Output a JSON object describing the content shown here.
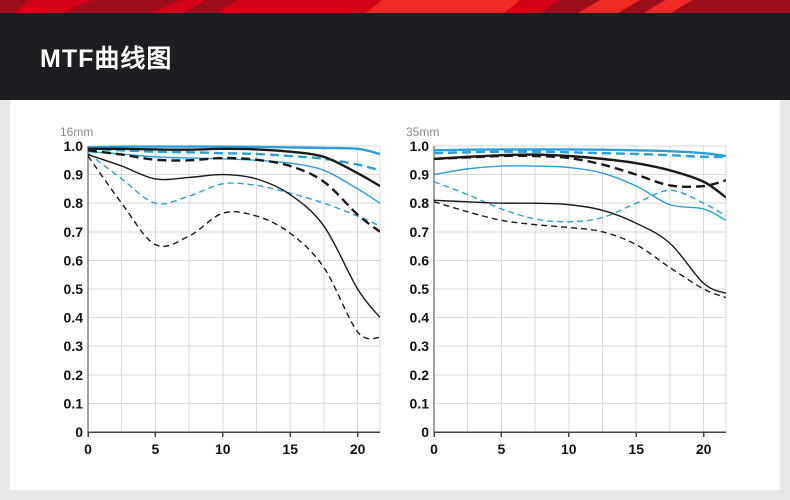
{
  "page": {
    "title": "MTF曲线图"
  },
  "theme": {
    "header_bg": "#1d1d22",
    "banner_red": "#d40017",
    "banner_bright": "#ef2a23",
    "banner_dark": "#9c0f1a",
    "panel_bg": "#ffffff",
    "outer_bg": "#e8e8e8",
    "grid_color": "#d8d8d8",
    "axis_color": "#444444",
    "label_color": "#111111",
    "chart_title_color": "#8a8a8a",
    "black_line": "#1a1a1a",
    "blue_line": "#2b9fd8"
  },
  "chart_data": [
    {
      "type": "line",
      "title": "16mm",
      "xlabel": "",
      "ylabel": "",
      "xlim": [
        0,
        21.66
      ],
      "ylim": [
        0,
        1.0
      ],
      "xticks": [
        0,
        5,
        10,
        15,
        20
      ],
      "ytick_labels": [
        "1.0",
        "0.9",
        "0.8",
        "0.7",
        "0.6",
        "0.5",
        "0.4",
        "0.3",
        "0.2",
        "0.1",
        "0"
      ],
      "grid": true,
      "legend": "none",
      "x": [
        0,
        2.5,
        5,
        7.5,
        10,
        12.5,
        15,
        17.5,
        20,
        21.66
      ],
      "series": [
        {
          "name": "blue-thin-dashed",
          "color": "#2b9fd8",
          "width": 1.4,
          "dash": "6,4",
          "y": [
            0.975,
            0.885,
            0.8,
            0.825,
            0.868,
            0.862,
            0.835,
            0.8,
            0.755,
            0.72
          ]
        },
        {
          "name": "blue-thin-solid",
          "color": "#2b9fd8",
          "width": 1.4,
          "dash": "none",
          "y": [
            0.98,
            0.972,
            0.962,
            0.958,
            0.955,
            0.95,
            0.94,
            0.915,
            0.85,
            0.8
          ]
        },
        {
          "name": "black-thin-dashed",
          "color": "#1a1a1a",
          "width": 1.4,
          "dash": "6,4",
          "y": [
            0.965,
            0.8,
            0.655,
            0.685,
            0.765,
            0.755,
            0.695,
            0.575,
            0.35,
            0.33
          ]
        },
        {
          "name": "black-thin-solid",
          "color": "#1a1a1a",
          "width": 1.4,
          "dash": "none",
          "y": [
            0.97,
            0.93,
            0.885,
            0.89,
            0.9,
            0.885,
            0.83,
            0.72,
            0.5,
            0.4
          ]
        },
        {
          "name": "blue-thick-dashed",
          "color": "#2b9fd8",
          "width": 2.4,
          "dash": "9,5",
          "y": [
            0.99,
            0.985,
            0.98,
            0.978,
            0.975,
            0.972,
            0.965,
            0.955,
            0.935,
            0.915
          ]
        },
        {
          "name": "blue-thick-solid",
          "color": "#2b9fd8",
          "width": 2.4,
          "dash": "none",
          "y": [
            0.995,
            0.998,
            0.998,
            0.998,
            0.998,
            0.997,
            0.995,
            0.993,
            0.99,
            0.972
          ]
        },
        {
          "name": "black-thick-dashed",
          "color": "#1a1a1a",
          "width": 2.4,
          "dash": "9,5",
          "y": [
            0.985,
            0.97,
            0.952,
            0.95,
            0.958,
            0.952,
            0.93,
            0.875,
            0.76,
            0.7
          ]
        },
        {
          "name": "black-thick-solid",
          "color": "#1a1a1a",
          "width": 2.4,
          "dash": "none",
          "y": [
            0.99,
            0.99,
            0.988,
            0.987,
            0.99,
            0.988,
            0.98,
            0.962,
            0.905,
            0.86
          ]
        }
      ]
    },
    {
      "type": "line",
      "title": "35mm",
      "xlabel": "",
      "ylabel": "",
      "xlim": [
        0,
        21.66
      ],
      "ylim": [
        0,
        1.0
      ],
      "xticks": [
        0,
        5,
        10,
        15,
        20
      ],
      "ytick_labels": [
        "1.0",
        "0.9",
        "0.8",
        "0.7",
        "0.6",
        "0.5",
        "0.4",
        "0.3",
        "0.2",
        "0.1",
        "0"
      ],
      "grid": true,
      "legend": "none",
      "x": [
        0,
        2.5,
        5,
        7.5,
        10,
        12.5,
        15,
        17.5,
        20,
        21.66
      ],
      "series": [
        {
          "name": "blue-thin-dashed",
          "color": "#2b9fd8",
          "width": 1.4,
          "dash": "6,4",
          "y": [
            0.875,
            0.83,
            0.78,
            0.745,
            0.735,
            0.75,
            0.8,
            0.845,
            0.8,
            0.755
          ]
        },
        {
          "name": "blue-thin-solid",
          "color": "#2b9fd8",
          "width": 1.4,
          "dash": "none",
          "y": [
            0.9,
            0.92,
            0.93,
            0.93,
            0.925,
            0.905,
            0.86,
            0.795,
            0.78,
            0.74
          ]
        },
        {
          "name": "black-thin-dashed",
          "color": "#1a1a1a",
          "width": 1.4,
          "dash": "6,4",
          "y": [
            0.805,
            0.77,
            0.74,
            0.725,
            0.715,
            0.7,
            0.655,
            0.575,
            0.5,
            0.47
          ]
        },
        {
          "name": "black-thin-solid",
          "color": "#1a1a1a",
          "width": 1.4,
          "dash": "none",
          "y": [
            0.81,
            0.805,
            0.8,
            0.8,
            0.795,
            0.775,
            0.73,
            0.66,
            0.52,
            0.485
          ]
        },
        {
          "name": "blue-thick-dashed",
          "color": "#2b9fd8",
          "width": 2.4,
          "dash": "9,5",
          "y": [
            0.975,
            0.978,
            0.98,
            0.98,
            0.978,
            0.975,
            0.972,
            0.968,
            0.962,
            0.962
          ]
        },
        {
          "name": "blue-thick-solid",
          "color": "#2b9fd8",
          "width": 2.4,
          "dash": "none",
          "y": [
            0.985,
            0.987,
            0.988,
            0.988,
            0.988,
            0.987,
            0.985,
            0.982,
            0.975,
            0.965
          ]
        },
        {
          "name": "black-thick-dashed",
          "color": "#1a1a1a",
          "width": 2.4,
          "dash": "9,5",
          "y": [
            0.955,
            0.96,
            0.965,
            0.965,
            0.958,
            0.935,
            0.9,
            0.862,
            0.86,
            0.88
          ]
        },
        {
          "name": "black-thick-solid",
          "color": "#1a1a1a",
          "width": 2.4,
          "dash": "none",
          "y": [
            0.955,
            0.962,
            0.968,
            0.97,
            0.965,
            0.955,
            0.94,
            0.915,
            0.875,
            0.82
          ]
        }
      ]
    }
  ]
}
